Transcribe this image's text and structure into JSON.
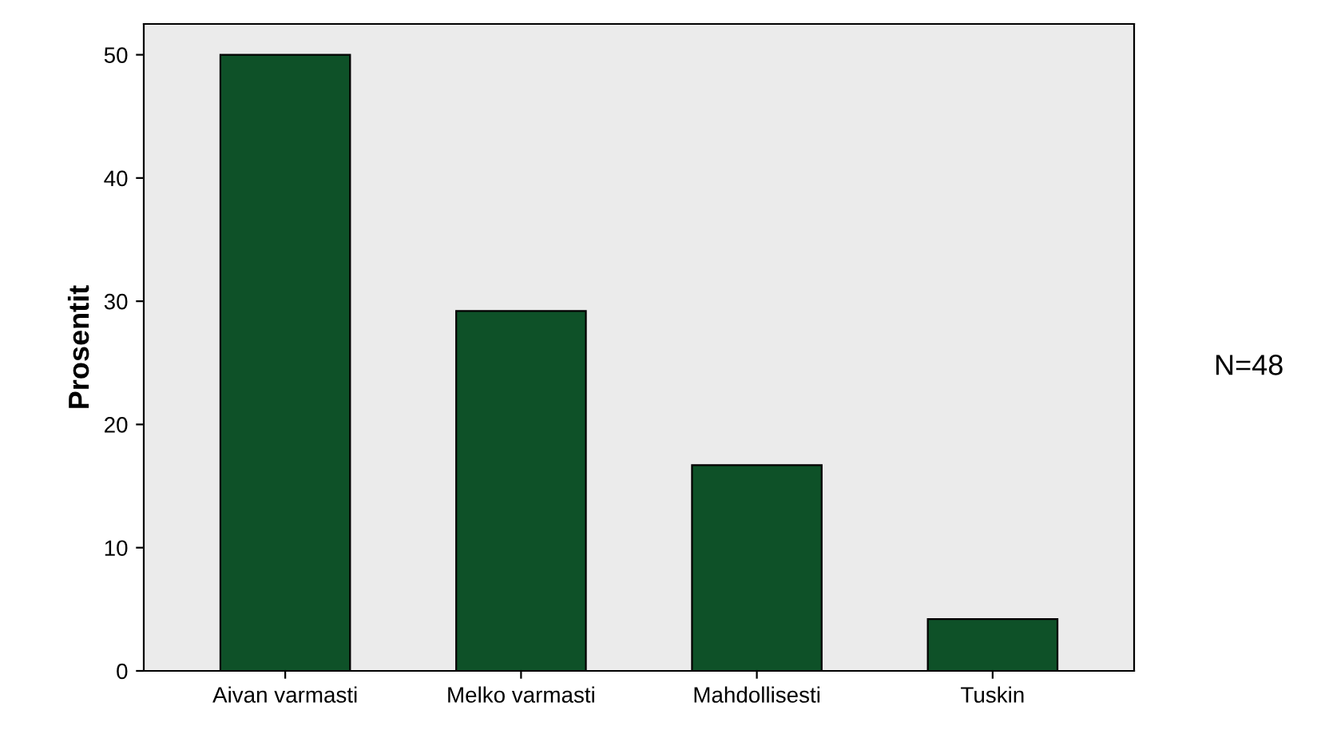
{
  "chart_data": {
    "type": "bar",
    "ylabel": "Prosentit",
    "categories": [
      "Aivan varmasti",
      "Melko varmasti",
      "Mahdollisesti",
      "Tuskin"
    ],
    "values": [
      50,
      29.2,
      16.7,
      4.2
    ],
    "color": "#0e5128",
    "ylim": [
      0,
      52.5
    ],
    "yticks": [
      0,
      10,
      20,
      30,
      40,
      50
    ],
    "grid": false,
    "annotations": [
      "N=48"
    ]
  }
}
